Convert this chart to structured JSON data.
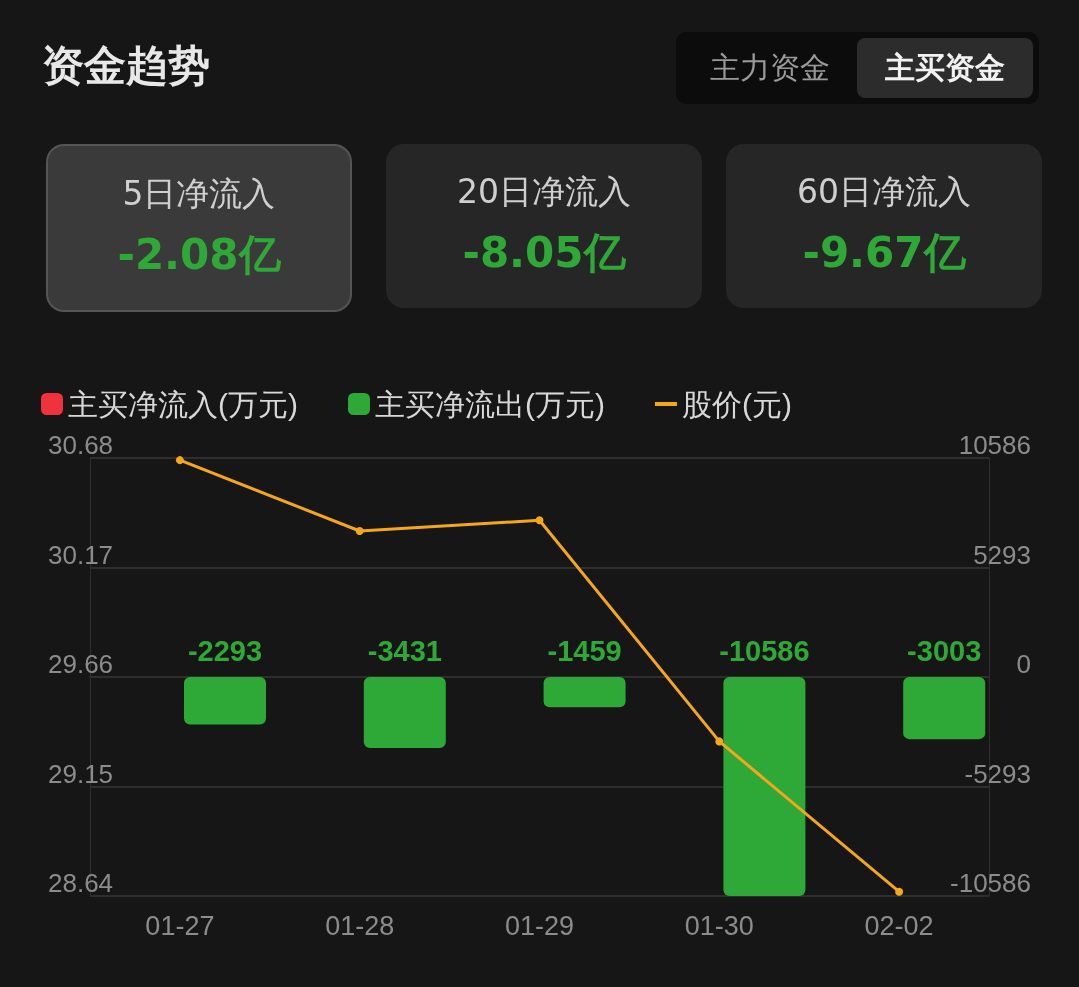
{
  "chart_data": {
    "type": "bar",
    "title": "资金趋势",
    "annotations": [
      "主力资金",
      "主买资金",
      "5日净流入",
      "-2.08亿",
      "20日净流入",
      "-8.05亿",
      "60日净流入",
      "-9.67亿"
    ],
    "categories": [
      "01-27",
      "01-28",
      "01-29",
      "01-30",
      "02-02"
    ],
    "series": [
      {
        "name": "主买净流入(万元)",
        "color": "#f0323c",
        "axis": "y2",
        "values": [
          null,
          null,
          null,
          null,
          null
        ]
      },
      {
        "name": "主买净流出(万元)",
        "color": "#2ea836",
        "axis": "y2",
        "values": [
          -2293,
          -3431,
          -1459,
          -10586,
          -3003
        ],
        "value_labels": [
          "-2293",
          "-3431",
          "-1459",
          "-10586",
          "-3003"
        ]
      },
      {
        "name": "股价(元)",
        "type": "line",
        "color": "#f5a71c",
        "values": [
          30.67,
          30.34,
          30.39,
          29.36,
          28.66
        ]
      }
    ],
    "ylim": [
      28.64,
      30.68
    ],
    "yticks": [
      28.64,
      29.15,
      29.66,
      30.17,
      30.68
    ],
    "y2lim": [
      -10586,
      10586
    ],
    "y2ticks": [
      -10586,
      -5293,
      0,
      5293,
      10586
    ],
    "grid": "y",
    "legend": "top left",
    "marker": "circle"
  }
}
